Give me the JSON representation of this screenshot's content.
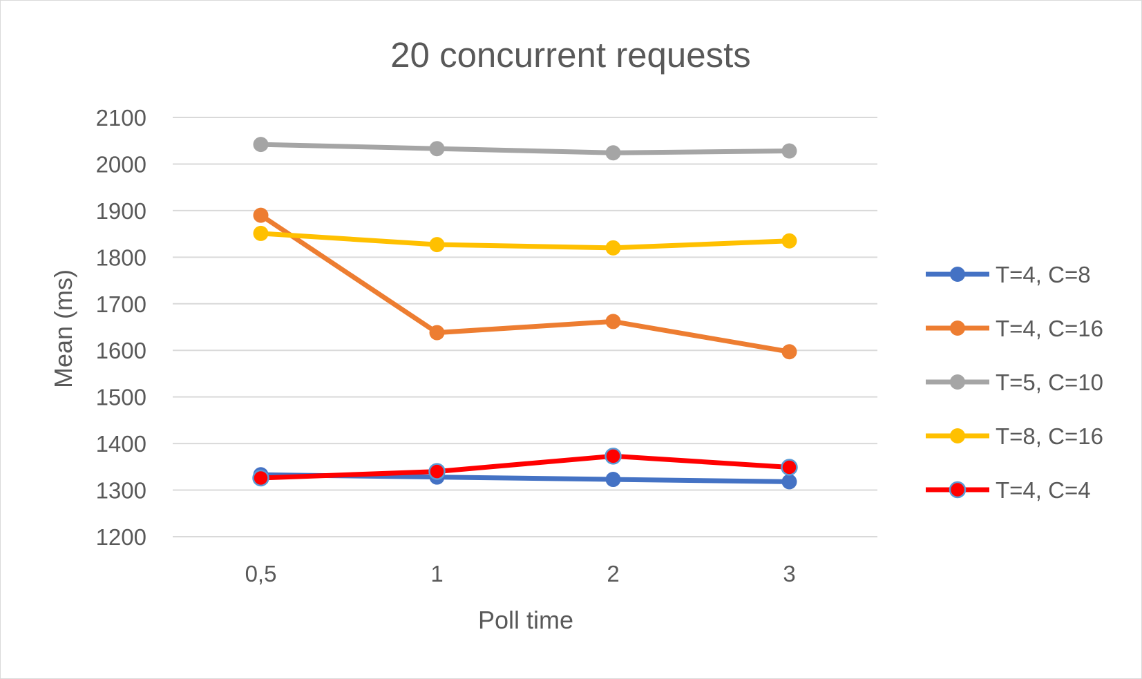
{
  "chart_data": {
    "type": "line",
    "title": "20 concurrent requests",
    "xlabel": "Poll time",
    "ylabel": "Mean (ms)",
    "categories": [
      "0,5",
      "1",
      "2",
      "3"
    ],
    "ylim": [
      1200,
      2100
    ],
    "yticks": [
      "1200",
      "1300",
      "1400",
      "1500",
      "1600",
      "1700",
      "1800",
      "1900",
      "2000",
      "2100"
    ],
    "grid": "horizontal",
    "legend_position": "right",
    "series": [
      {
        "name": "T=4, C=8",
        "color": "#4472c4",
        "values": [
          1333,
          1328,
          1323,
          1318
        ],
        "marker_fill": "#4472c4"
      },
      {
        "name": "T=4, C=16",
        "color": "#ed7d31",
        "values": [
          1890,
          1638,
          1662,
          1597
        ],
        "marker_fill": "#ed7d31"
      },
      {
        "name": "T=5, C=10",
        "color": "#a5a5a5",
        "values": [
          2042,
          2033,
          2024,
          2028
        ],
        "marker_fill": "#a5a5a5"
      },
      {
        "name": "T=8, C=16",
        "color": "#ffc000",
        "values": [
          1851,
          1827,
          1820,
          1835
        ],
        "marker_fill": "#ffc000"
      },
      {
        "name": "T=4, C=4",
        "color": "#ff0000",
        "values": [
          1326,
          1340,
          1373,
          1349
        ],
        "marker_fill": "#ff0000",
        "marker_stroke": "#5b9bd5"
      }
    ]
  }
}
